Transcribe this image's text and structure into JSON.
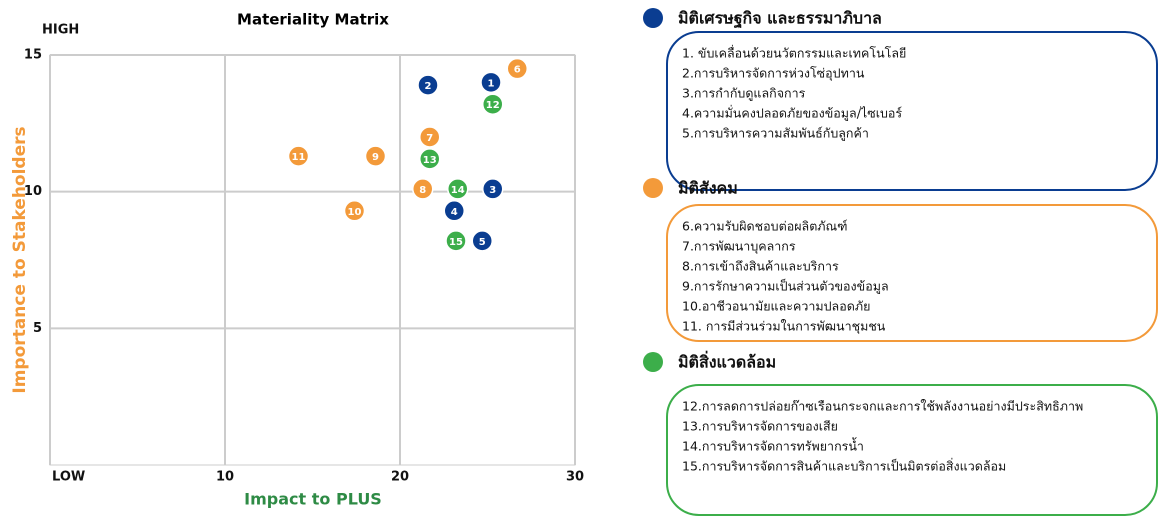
{
  "chart_data": {
    "type": "scatter",
    "title": "Materiality Matrix",
    "xlabel": "Impact to PLUS",
    "ylabel": "Importance to Stakeholders",
    "y_top_label": "HIGH",
    "xlim": [
      0,
      30
    ],
    "ylim": [
      0,
      15
    ],
    "xticks": [
      {
        "value": 0,
        "label": "LOW"
      },
      10,
      20,
      30
    ],
    "yticks": [
      5,
      10,
      15
    ],
    "grid": true,
    "series": [
      {
        "name": "มิติเศรษฐกิจ และธรรมาภิบาล",
        "color": "#0a3d91",
        "labels": [
          "1",
          "2",
          "3",
          "4",
          "5"
        ],
        "x": [
          25.2,
          21.6,
          25.3,
          23.1,
          24.7
        ],
        "values": [
          14.0,
          13.9,
          10.1,
          9.3,
          8.2
        ],
        "items": [
          "1. ขับเคลื่อนด้วยนวัตกรรมและเทคโนโลยี",
          "2.การบริหารจัดการห่วงโซ่อุปทาน",
          "3.การกำกับดูแลกิจการ",
          "4.ความมั่นคงปลอดภัยของข้อมูล/ไซเบอร์",
          "5.การบริหารความสัมพันธ์กับลูกค้า"
        ]
      },
      {
        "name": "มิติสังคม",
        "color": "#f39a3a",
        "labels": [
          "6",
          "7",
          "8",
          "9",
          "10",
          "11"
        ],
        "x": [
          26.7,
          21.7,
          21.3,
          18.6,
          17.4,
          14.2
        ],
        "values": [
          14.5,
          12.0,
          10.1,
          11.3,
          9.3,
          11.3
        ],
        "items": [
          "6.ความรับผิดชอบต่อผลิตภัณฑ์",
          "7.การพัฒนาบุคลากร",
          "8.การเข้าถึงสินค้าและบริการ",
          "9.การรักษาความเป็นส่วนตัวของข้อมูล",
          "10.อาชีวอนามัยและความปลอดภัย",
          "11. การมีส่วนร่วมในการพัฒนาชุมชน"
        ]
      },
      {
        "name": "มิติสิ่งแวดล้อม",
        "color": "#3cae4a",
        "labels": [
          "12",
          "13",
          "14",
          "15"
        ],
        "x": [
          25.3,
          21.7,
          23.3,
          23.2
        ],
        "values": [
          13.2,
          11.2,
          10.1,
          8.2
        ],
        "items": [
          "12.การลดการปล่อยก๊าซเรือนกระจกและการใช้พลังงานอย่างมีประสิทธิภาพ",
          "13.การบริหารจัดการของเสีย",
          "14.การบริหารจัดการทรัพยากรน้ำ",
          "15.การบริหารจัดการสินค้าและบริการเป็นมิตรต่อสิ่งแวดล้อม"
        ]
      }
    ]
  }
}
